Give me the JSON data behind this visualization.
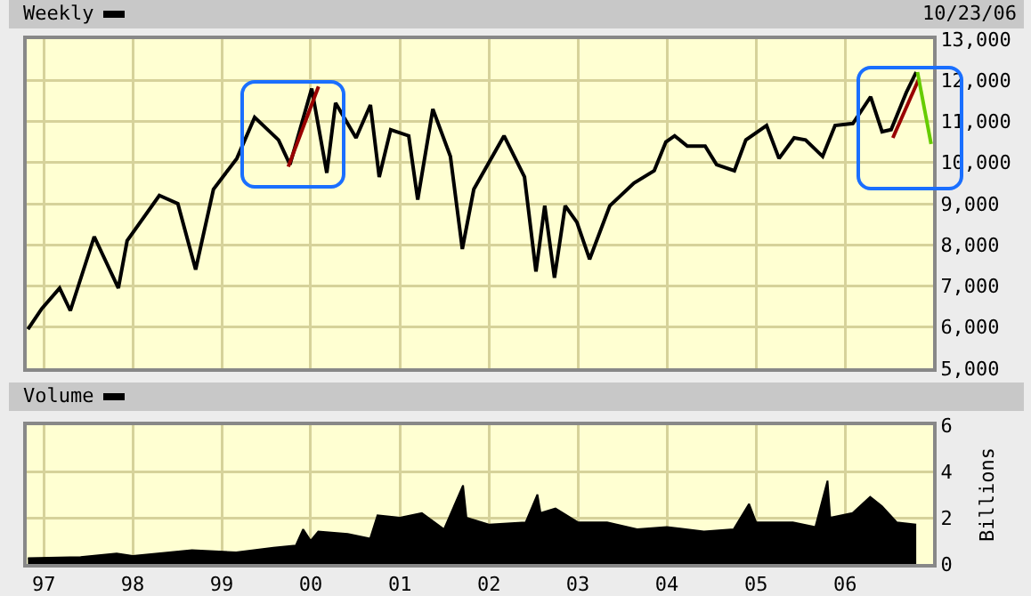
{
  "chart_data": [
    {
      "type": "line",
      "title": "Weekly",
      "annotations": [
        "10/23/06"
      ],
      "grid": true,
      "marker": "none",
      "line_style": "solid",
      "tick_labels": "y",
      "xlim": [
        "1996-10-23",
        "2006-12-28"
      ],
      "xticks": [
        {
          "value": "1997-01-01",
          "label": null
        },
        {
          "value": "1998-01-01",
          "label": null
        },
        {
          "value": "1999-01-01",
          "label": null
        },
        {
          "value": "2000-01-01",
          "label": null
        },
        {
          "value": "2001-01-01",
          "label": null
        },
        {
          "value": "2002-01-01",
          "label": null
        },
        {
          "value": "2003-01-01",
          "label": null
        },
        {
          "value": "2004-01-01",
          "label": null
        },
        {
          "value": "2005-01-01",
          "label": null
        },
        {
          "value": "2006-01-01",
          "label": null
        }
      ],
      "ylim": [
        5000,
        13000
      ],
      "yticks": [
        {
          "value": 5000,
          "label": "5,000"
        },
        {
          "value": 6000,
          "label": "6,000"
        },
        {
          "value": 7000,
          "label": "7,000"
        },
        {
          "value": 8000,
          "label": "8,000"
        },
        {
          "value": 9000,
          "label": "9,000"
        },
        {
          "value": 10000,
          "label": "10,000"
        },
        {
          "value": 11000,
          "label": "11,000"
        },
        {
          "value": 12000,
          "label": "12,000"
        },
        {
          "value": 13000,
          "label": "13,000"
        }
      ],
      "series": [
        {
          "color": "#000000",
          "x": [
            "1996-10-28",
            "1996-12-24",
            "1997-03-07",
            "1997-04-20",
            "1997-07-27",
            "1997-11-03",
            "1997-12-09",
            "1998-04-20",
            "1998-07-05",
            "1998-09-16",
            "1998-11-28",
            "1999-03-04",
            "1999-05-16",
            "1999-08-22",
            "1999-10-08",
            "2000-01-05",
            "2000-03-07",
            "2000-04-12",
            "2000-07-05",
            "2000-09-02",
            "2000-10-08",
            "2000-11-24",
            "2001-02-06",
            "2001-03-15",
            "2001-05-16",
            "2001-07-27",
            "2001-09-14",
            "2001-10-31",
            "2002-03-04",
            "2002-05-27",
            "2002-07-13",
            "2002-08-18",
            "2002-09-27",
            "2002-11-10",
            "2002-12-28",
            "2003-02-18",
            "2003-05-12",
            "2003-08-19",
            "2003-11-10",
            "2003-12-28",
            "2004-02-02",
            "2004-03-25",
            "2004-06-06",
            "2004-07-23",
            "2004-10-04",
            "2004-11-20",
            "2005-02-13",
            "2005-04-05",
            "2005-06-06",
            "2005-07-23",
            "2005-10-01",
            "2005-11-21",
            "2006-02-02",
            "2006-04-16",
            "2006-06-02",
            "2006-07-09",
            "2006-09-09",
            "2006-10-20"
          ],
          "values": [
            5950,
            6450,
            6950,
            6400,
            8200,
            6950,
            8100,
            9200,
            9000,
            7400,
            9350,
            10100,
            11100,
            10550,
            9950,
            11800,
            9750,
            11450,
            10600,
            11400,
            9650,
            10800,
            10650,
            9100,
            11300,
            10150,
            7900,
            9350,
            10650,
            9650,
            7350,
            8950,
            7200,
            8950,
            8550,
            7650,
            8950,
            9500,
            9800,
            10500,
            10650,
            10400,
            10400,
            9950,
            9800,
            10550,
            10900,
            10100,
            10600,
            10550,
            10150,
            10900,
            10950,
            11600,
            10750,
            10800,
            11700,
            12200
          ]
        },
        {
          "color": "#990000",
          "x": [
            "1999-10-01",
            "2000-02-02"
          ],
          "values": [
            9900,
            11850
          ]
        },
        {
          "color": "#990000",
          "x": [
            "2006-07-16",
            "2006-11-01"
          ],
          "values": [
            10600,
            12050
          ]
        },
        {
          "color": "#66cc00",
          "x": [
            "2006-10-25",
            "2006-12-20"
          ],
          "values": [
            12200,
            10450
          ]
        }
      ]
    },
    {
      "type": "area",
      "title": "Volume",
      "ylabel": "Billions",
      "grid": true,
      "tick_labels": "xy",
      "xlim": [
        "1996-10-23",
        "2006-12-28"
      ],
      "xticks": [
        {
          "value": "1997-01-01",
          "label": "97"
        },
        {
          "value": "1998-01-01",
          "label": "98"
        },
        {
          "value": "1999-01-01",
          "label": "99"
        },
        {
          "value": "2000-01-01",
          "label": "00"
        },
        {
          "value": "2001-01-01",
          "label": "01"
        },
        {
          "value": "2002-01-01",
          "label": "02"
        },
        {
          "value": "2003-01-01",
          "label": "03"
        },
        {
          "value": "2004-01-01",
          "label": "04"
        },
        {
          "value": "2005-01-01",
          "label": "05"
        },
        {
          "value": "2006-01-01",
          "label": "06"
        }
      ],
      "ylim": [
        0,
        6
      ],
      "yticks": [
        0,
        2,
        4,
        6
      ],
      "series": [
        {
          "color": "#000000",
          "x": [
            "1996-10-28",
            "1997-06-01",
            "1997-10-27",
            "1998-01-01",
            "1998-09-01",
            "1999-03-01",
            "1999-08-01",
            "1999-11-01",
            "1999-12-01",
            "2000-01-01",
            "2000-02-01",
            "2000-06-01",
            "2000-09-01",
            "2000-10-01",
            "2001-01-01",
            "2001-04-01",
            "2001-07-01",
            "2001-09-17",
            "2001-10-01",
            "2002-01-01",
            "2002-06-01",
            "2002-07-19",
            "2002-08-01",
            "2002-10-01",
            "2003-01-01",
            "2003-05-01",
            "2003-09-01",
            "2004-01-01",
            "2004-06-01",
            "2004-10-01",
            "2004-12-03",
            "2005-01-01",
            "2005-06-01",
            "2005-09-01",
            "2005-10-21",
            "2005-11-01",
            "2006-02-01",
            "2006-04-14",
            "2006-06-01",
            "2006-08-01",
            "2006-10-20"
          ],
          "values": [
            0.25,
            0.3,
            0.45,
            0.35,
            0.6,
            0.5,
            0.7,
            0.8,
            1.5,
            1.0,
            1.4,
            1.3,
            1.1,
            2.1,
            2.0,
            2.2,
            1.5,
            3.4,
            2.0,
            1.7,
            1.8,
            3.0,
            2.2,
            2.4,
            1.8,
            1.8,
            1.5,
            1.6,
            1.4,
            1.5,
            2.6,
            1.8,
            1.8,
            1.6,
            3.6,
            2.0,
            2.2,
            2.9,
            2.5,
            1.8,
            1.7
          ]
        }
      ]
    }
  ]
}
